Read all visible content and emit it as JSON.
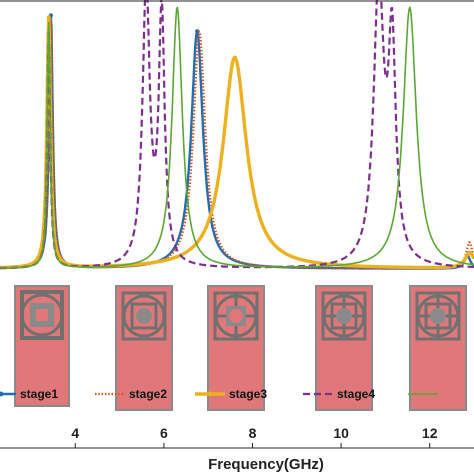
{
  "chart_data": {
    "type": "line",
    "xlabel": "Frequency(GHz)",
    "ylabel": "",
    "title": "",
    "xlim": [
      2.3,
      13.0
    ],
    "ylim": [
      0,
      1
    ],
    "xticks": [
      4,
      6,
      8,
      10,
      12
    ],
    "grid": false,
    "legend_position": "bottom",
    "series": [
      {
        "name": "stage1",
        "color": "#1f6fb5",
        "style": "solid-marker",
        "peaks": [
          {
            "x": 3.45,
            "y": 0.96,
            "w": 0.05
          },
          {
            "x": 6.75,
            "y": 0.9,
            "w": 0.16
          },
          {
            "x": 12.85,
            "y": 0.05,
            "w": 0.08
          }
        ]
      },
      {
        "name": "stage2",
        "color": "#d95319",
        "style": "dotted",
        "peaks": [
          {
            "x": 3.45,
            "y": 0.95,
            "w": 0.05
          },
          {
            "x": 6.8,
            "y": 0.9,
            "w": 0.16
          },
          {
            "x": 12.9,
            "y": 0.1,
            "w": 0.09
          }
        ]
      },
      {
        "name": "stage3",
        "color": "#edb120",
        "style": "solid-marker-thick",
        "peaks": [
          {
            "x": 3.4,
            "y": 0.95,
            "w": 0.05
          },
          {
            "x": 7.6,
            "y": 0.8,
            "w": 0.32
          },
          {
            "x": 12.9,
            "y": 0.06,
            "w": 0.12
          }
        ]
      },
      {
        "name": "stage4",
        "color": "#7e2f8e",
        "style": "dashed",
        "peaks": [
          {
            "x": 3.4,
            "y": 0.9,
            "w": 0.04
          },
          {
            "x": 5.6,
            "y": 1.05,
            "w": 0.1
          },
          {
            "x": 5.95,
            "y": 0.95,
            "w": 0.08
          },
          {
            "x": 10.85,
            "y": 1.05,
            "w": 0.14
          },
          {
            "x": 11.15,
            "y": 0.8,
            "w": 0.1
          }
        ]
      },
      {
        "name": "",
        "color": "#5aa832",
        "style": "solid",
        "peaks": [
          {
            "x": 3.4,
            "y": 0.93,
            "w": 0.04
          },
          {
            "x": 6.3,
            "y": 0.99,
            "w": 0.14
          },
          {
            "x": 11.55,
            "y": 0.99,
            "w": 0.18
          }
        ]
      }
    ]
  }
}
